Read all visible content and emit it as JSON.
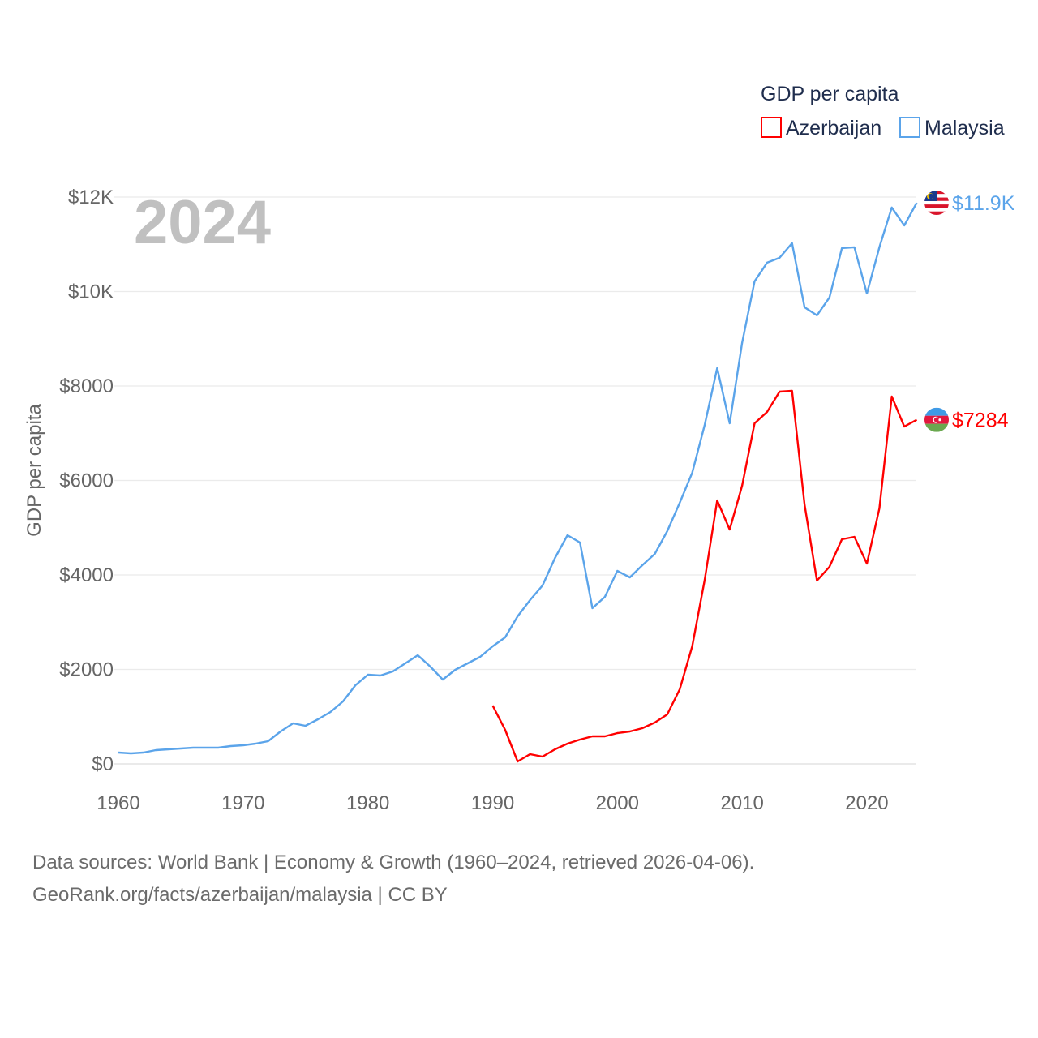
{
  "chart_data": {
    "type": "line",
    "title": "",
    "year_overlay": "2024",
    "xlabel": "",
    "ylabel": "GDP per capita",
    "xlim": [
      1960,
      2024
    ],
    "ylim": [
      0,
      12000
    ],
    "grid": true,
    "x_ticks": [
      1960,
      1970,
      1980,
      1990,
      2000,
      2010,
      2020
    ],
    "x_tick_labels": [
      "1960",
      "1970",
      "1980",
      "1990",
      "2000",
      "2010",
      "2020"
    ],
    "y_ticks": [
      0,
      2000,
      4000,
      6000,
      8000,
      10000,
      12000
    ],
    "y_tick_labels": [
      "$0",
      "$2000",
      "$4000",
      "$6000",
      "$8000",
      "$10K",
      "$12K"
    ],
    "legend": {
      "title": "GDP per capita",
      "placement": "top-right"
    },
    "series": [
      {
        "name": "Azerbaijan",
        "color": "#ff0000",
        "end_label": "$7284",
        "flag": "azerbaijan-flag",
        "x": [
          1990,
          1991,
          1992,
          1993,
          1994,
          1995,
          1996,
          1997,
          1998,
          1999,
          2000,
          2001,
          2002,
          2003,
          2004,
          2005,
          2006,
          2007,
          2008,
          2009,
          2010,
          2011,
          2012,
          2013,
          2014,
          2015,
          2016,
          2017,
          2018,
          2019,
          2020,
          2021,
          2022,
          2023,
          2024
        ],
        "values": [
          1236,
          721,
          52,
          206,
          155,
          309,
          429,
          515,
          584,
          584,
          652,
          687,
          755,
          876,
          1047,
          1580,
          2489,
          3897,
          5578,
          4961,
          5889,
          7211,
          7451,
          7880,
          7897,
          5494,
          3880,
          4172,
          4756,
          4807,
          4241,
          5408,
          7777,
          7142,
          7284
        ]
      },
      {
        "name": "Malaysia",
        "color": "#5ba4ea",
        "end_label": "$11.9K",
        "flag": "malaysia-flag",
        "x": [
          1960,
          1961,
          1962,
          1963,
          1964,
          1965,
          1966,
          1967,
          1968,
          1969,
          1970,
          1971,
          1972,
          1973,
          1974,
          1975,
          1976,
          1977,
          1978,
          1979,
          1980,
          1981,
          1982,
          1983,
          1984,
          1985,
          1986,
          1987,
          1988,
          1989,
          1990,
          1991,
          1992,
          1993,
          1994,
          1995,
          1996,
          1997,
          1998,
          1999,
          2000,
          2001,
          2002,
          2003,
          2004,
          2005,
          2006,
          2007,
          2008,
          2009,
          2010,
          2011,
          2012,
          2013,
          2014,
          2015,
          2016,
          2017,
          2018,
          2019,
          2020,
          2021,
          2022,
          2023,
          2024
        ],
        "values": [
          240,
          223,
          240,
          292,
          309,
          326,
          343,
          343,
          343,
          378,
          395,
          429,
          481,
          687,
          858,
          807,
          944,
          1099,
          1322,
          1665,
          1889,
          1871,
          1957,
          2129,
          2300,
          2060,
          1786,
          1992,
          2129,
          2266,
          2489,
          2678,
          3124,
          3468,
          3777,
          4361,
          4841,
          4687,
          3296,
          3537,
          4086,
          3949,
          4206,
          4447,
          4927,
          5528,
          6164,
          7177,
          8379,
          7211,
          8911,
          10216,
          10611,
          10714,
          11023,
          9667,
          9495,
          9873,
          10920,
          10937,
          9959,
          10937,
          11778,
          11400,
          11880
        ]
      }
    ]
  },
  "footer": {
    "line1": "Data sources: World Bank | Economy & Growth (1960–2024, retrieved 2026-04-06).",
    "line2": "GeoRank.org/facts/azerbaijan/malaysia | CC BY"
  }
}
